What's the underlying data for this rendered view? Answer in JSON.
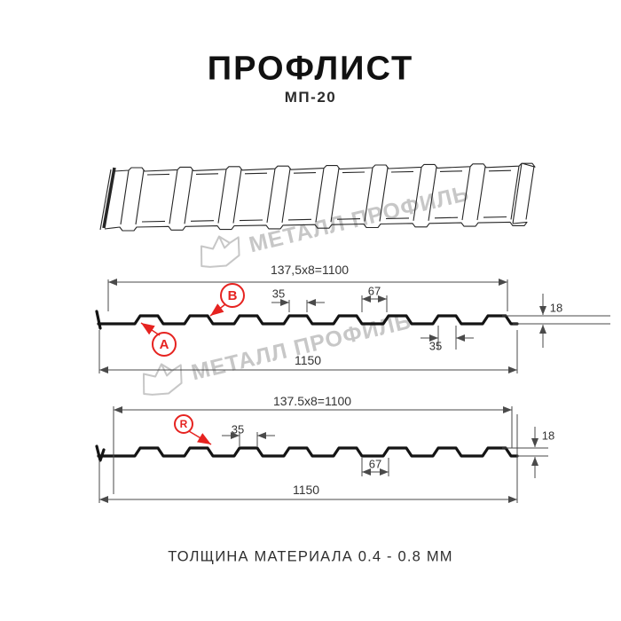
{
  "header": {
    "title": "ПРОФЛИСТ",
    "subtitle": "МП-20"
  },
  "watermark": {
    "brand": "МЕТАЛЛ ПРОФИЛЬ"
  },
  "section_top": {
    "label_a": "A",
    "label_b": "B",
    "dims": {
      "span": "137,5x8=1100",
      "rib_top_width": "35",
      "rib_spacing": "67",
      "rib_bottom_width": "35",
      "height": "18",
      "overall_width": "1150"
    }
  },
  "section_bottom": {
    "label_r": "R",
    "dims": {
      "span": "137.5x8=1100",
      "rib_top_width": "35",
      "rib_spacing": "67",
      "height": "18",
      "overall_width": "1150"
    }
  },
  "footer": {
    "note": "ТОЛЩИНА МАТЕРИАЛА 0.4 - 0.8 ММ"
  },
  "colors": {
    "accent": "#e62320",
    "line": "#141414",
    "dim_line": "#4a4a4a",
    "watermark": "#c7c7c7"
  }
}
